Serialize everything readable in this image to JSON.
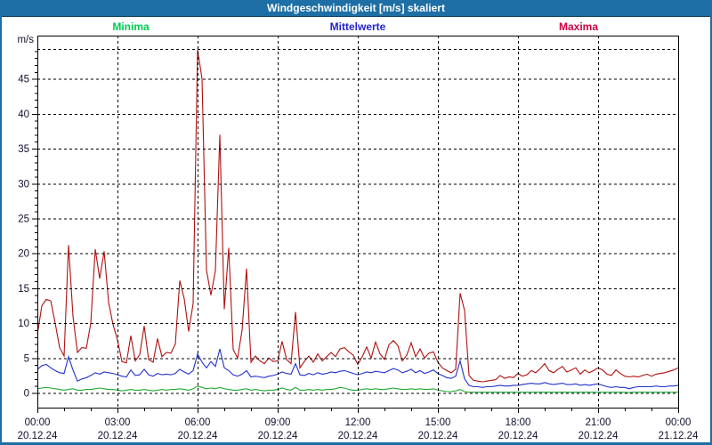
{
  "window": {
    "title": "Windgeschwindigkeit [m/s] skaliert"
  },
  "legend": {
    "items": [
      {
        "label": "Minima",
        "color": "#00cc55"
      },
      {
        "label": "Mittelwerte",
        "color": "#2222cc"
      },
      {
        "label": "Maxima",
        "color": "#cc0040"
      }
    ]
  },
  "colors": {
    "titlebar_bg": "#1d6fa5",
    "frame_border": "#1d6fa5",
    "plot_bg": "#ffffff",
    "grid": "#000000",
    "axis_text": "#10102f"
  },
  "chart_data": {
    "type": "line",
    "title": "Windgeschwindigkeit [m/s] skaliert",
    "xlabel": "",
    "ylabel": "m/s",
    "grid": "dashed",
    "legend_position": "top",
    "ylim": [
      -2.1,
      51.2
    ],
    "y_major_ticks": [
      0,
      5,
      10,
      15,
      20,
      25,
      30,
      35,
      40,
      45
    ],
    "y_top_gridline": 49.3,
    "y_minor_tick_step": 1,
    "x_start_hour": 0,
    "x_end_hour": 24,
    "x_interval_minutes": 10,
    "x_minor_tick_hours": 1,
    "x_major_tick_hours": 3,
    "x_major_ticks": [
      {
        "time": "00:00",
        "date": "20.12.24"
      },
      {
        "time": "03:00",
        "date": "20.12.24"
      },
      {
        "time": "06:00",
        "date": "20.12.24"
      },
      {
        "time": "09:00",
        "date": "20.12.24"
      },
      {
        "time": "12:00",
        "date": "20.12.24"
      },
      {
        "time": "15:00",
        "date": "20.12.24"
      },
      {
        "time": "18:00",
        "date": "20.12.24"
      },
      {
        "time": "21:00",
        "date": "20.12.24"
      },
      {
        "time": "00:00",
        "date": "21.12.24"
      }
    ],
    "series": [
      {
        "name": "Minima",
        "color": "#1faa33",
        "values": [
          0.6,
          0.7,
          0.8,
          0.7,
          0.6,
          0.5,
          0.4,
          0.5,
          0.6,
          0.4,
          0.4,
          0.5,
          0.5,
          0.6,
          0.7,
          0.6,
          0.5,
          0.5,
          0.4,
          0.3,
          0.4,
          0.5,
          0.4,
          0.4,
          0.5,
          0.4,
          0.3,
          0.4,
          0.5,
          0.4,
          0.5,
          0.5,
          0.6,
          0.5,
          0.4,
          0.6,
          1.0,
          0.8,
          0.6,
          0.7,
          0.6,
          0.8,
          0.6,
          0.5,
          0.4,
          0.4,
          0.5,
          0.6,
          0.4,
          0.5,
          0.4,
          0.3,
          0.4,
          0.4,
          0.5,
          0.7,
          0.5,
          0.4,
          0.8,
          0.4,
          0.4,
          0.5,
          0.4,
          0.5,
          0.4,
          0.5,
          0.5,
          0.6,
          0.8,
          0.7,
          0.5,
          0.4,
          0.4,
          0.5,
          0.6,
          0.5,
          0.6,
          0.5,
          0.5,
          0.6,
          0.7,
          0.6,
          0.5,
          0.5,
          0.6,
          0.5,
          0.6,
          0.5,
          0.5,
          0.6,
          0.4,
          0.3,
          0.2,
          0.2,
          0.3,
          0.5,
          0.2,
          0.1,
          0.1,
          0.1,
          0.1,
          0.1,
          0.1,
          0.1,
          0.1,
          0.1,
          0.1,
          0.1,
          0.1,
          0.1,
          0.1,
          0.1,
          0.1,
          0.1,
          0.1,
          0.1,
          0.1,
          0.1,
          0.1,
          0.1,
          0.1,
          0.1,
          0.1,
          0.1,
          0.1,
          0.1,
          0.1,
          0.1,
          0.1,
          0.1,
          0.1,
          0.1,
          0.1,
          0.05,
          0.1,
          0.1,
          0.1,
          0.1,
          0.1,
          0.1,
          0.1,
          0.1,
          0.1,
          0.1,
          0.1
        ]
      },
      {
        "name": "Mittelwerte",
        "color": "#2233cc",
        "values": [
          3.4,
          3.9,
          4.1,
          3.6,
          3.2,
          2.9,
          2.8,
          5.2,
          3.3,
          1.7,
          2.0,
          2.2,
          2.5,
          2.9,
          2.7,
          3.0,
          2.9,
          2.8,
          2.6,
          2.4,
          2.3,
          3.3,
          2.5,
          2.6,
          3.4,
          2.6,
          2.4,
          2.8,
          2.6,
          2.7,
          2.6,
          2.8,
          3.4,
          3.0,
          2.7,
          3.2,
          5.6,
          4.4,
          3.6,
          4.5,
          3.8,
          6.3,
          3.6,
          3.2,
          2.6,
          2.4,
          2.7,
          3.2,
          2.3,
          2.4,
          2.3,
          2.2,
          2.4,
          2.5,
          2.7,
          3.0,
          2.8,
          2.7,
          4.2,
          2.6,
          2.5,
          2.8,
          2.6,
          2.9,
          2.7,
          2.8,
          3.0,
          2.9,
          3.1,
          3.2,
          3.0,
          2.8,
          2.6,
          2.8,
          3.0,
          2.9,
          3.1,
          3.0,
          2.9,
          3.2,
          3.5,
          3.3,
          2.9,
          3.1,
          3.4,
          2.9,
          3.2,
          2.8,
          3.0,
          3.3,
          2.8,
          2.5,
          2.2,
          2.1,
          2.4,
          4.6,
          2.0,
          1.1,
          0.9,
          0.9,
          0.8,
          0.9,
          0.9,
          1.0,
          1.1,
          1.0,
          1.0,
          1.1,
          1.1,
          1.2,
          1.3,
          1.4,
          1.3,
          1.3,
          1.5,
          1.3,
          1.2,
          1.3,
          1.4,
          1.2,
          1.2,
          1.3,
          1.1,
          1.2,
          1.1,
          1.2,
          1.3,
          1.1,
          0.9,
          0.8,
          0.9,
          0.8,
          0.8,
          0.6,
          0.8,
          0.9,
          0.9,
          0.9,
          0.9,
          1.0,
          0.9,
          0.9,
          1.0,
          1.0,
          1.1
        ]
      },
      {
        "name": "Maxima",
        "color": "#b01010",
        "values": [
          8.4,
          12.5,
          13.4,
          13.2,
          10.0,
          6.5,
          5.3,
          21.2,
          11.0,
          5.8,
          6.5,
          6.4,
          10.0,
          20.6,
          16.4,
          20.3,
          13.0,
          9.8,
          7.6,
          4.5,
          4.3,
          8.2,
          4.6,
          5.5,
          9.6,
          4.8,
          4.4,
          7.8,
          5.2,
          5.8,
          5.7,
          7.0,
          16.1,
          13.5,
          8.8,
          12.8,
          49.2,
          45.0,
          17.6,
          14.0,
          17.5,
          37.0,
          12.0,
          20.8,
          6.2,
          5.0,
          9.0,
          17.8,
          4.4,
          5.3,
          4.6,
          4.2,
          5.0,
          4.5,
          4.6,
          7.4,
          4.8,
          4.2,
          11.6,
          3.6,
          4.5,
          5.3,
          4.4,
          5.6,
          4.6,
          5.2,
          5.8,
          5.2,
          6.3,
          6.5,
          5.9,
          5.4,
          4.1,
          5.2,
          6.6,
          5.0,
          7.3,
          5.6,
          4.8,
          6.9,
          7.5,
          6.8,
          4.6,
          5.4,
          7.2,
          5.2,
          6.3,
          5.0,
          5.7,
          5.9,
          4.4,
          3.6,
          3.2,
          2.9,
          3.4,
          14.3,
          11.8,
          2.5,
          1.8,
          1.7,
          1.6,
          1.7,
          1.8,
          1.9,
          2.5,
          2.1,
          2.3,
          2.2,
          2.8,
          2.4,
          2.6,
          3.2,
          2.9,
          3.5,
          4.2,
          3.2,
          2.9,
          3.4,
          3.8,
          3.0,
          3.3,
          3.6,
          2.7,
          3.3,
          2.9,
          3.2,
          3.6,
          3.3,
          2.7,
          2.5,
          3.3,
          2.8,
          2.4,
          2.3,
          2.4,
          2.3,
          2.5,
          2.7,
          2.4,
          2.7,
          2.8,
          2.9,
          3.1,
          3.3,
          3.6
        ]
      }
    ]
  }
}
